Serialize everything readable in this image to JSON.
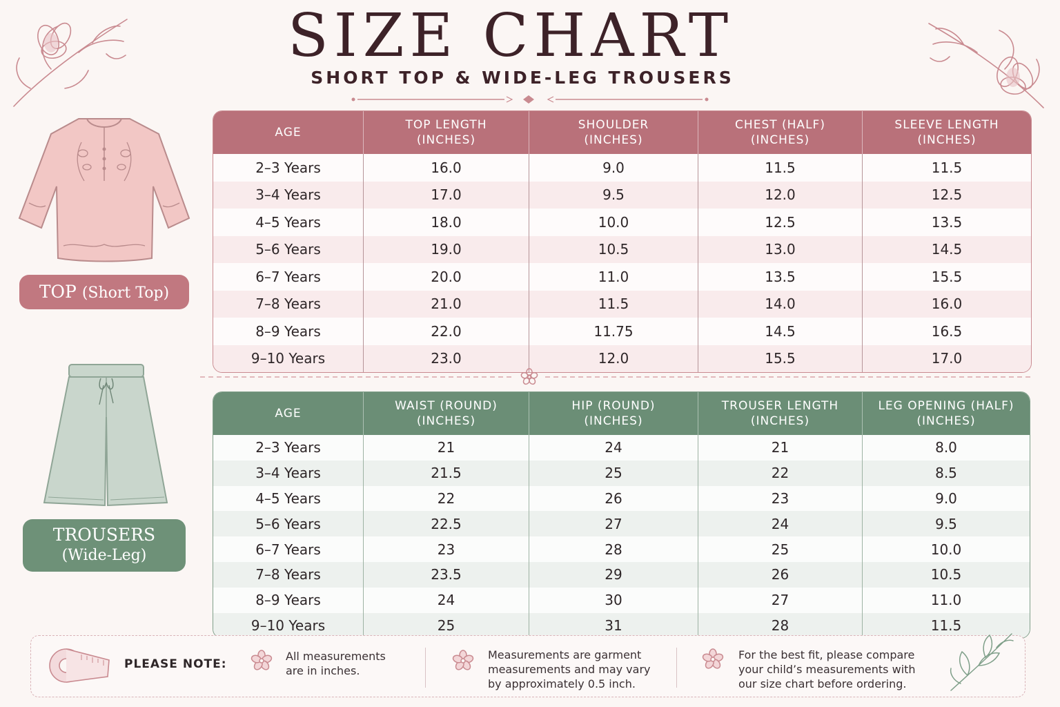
{
  "header": {
    "title": "SIZE CHART",
    "subtitle": "SHORT TOP & WIDE-LEG TROUSERS"
  },
  "top_section": {
    "badge_main": "TOP",
    "badge_sub": "(Short Top)",
    "columns": [
      {
        "line1": "AGE",
        "line2": ""
      },
      {
        "line1": "TOP LENGTH",
        "line2": "(INCHES)"
      },
      {
        "line1": "SHOULDER",
        "line2": "(INCHES)"
      },
      {
        "line1": "CHEST (HALF)",
        "line2": "(INCHES)"
      },
      {
        "line1": "SLEEVE LENGTH",
        "line2": "(INCHES)"
      }
    ],
    "rows": [
      [
        "2–3 Years",
        "16.0",
        "9.0",
        "11.5",
        "11.5"
      ],
      [
        "3–4 Years",
        "17.0",
        "9.5",
        "12.0",
        "12.5"
      ],
      [
        "4–5 Years",
        "18.0",
        "10.0",
        "12.5",
        "13.5"
      ],
      [
        "5–6 Years",
        "19.0",
        "10.5",
        "13.0",
        "14.5"
      ],
      [
        "6–7 Years",
        "20.0",
        "11.0",
        "13.5",
        "15.5"
      ],
      [
        "7–8 Years",
        "21.0",
        "11.5",
        "14.0",
        "16.0"
      ],
      [
        "8–9 Years",
        "22.0",
        "11.75",
        "14.5",
        "16.5"
      ],
      [
        "9–10 Years",
        "23.0",
        "12.0",
        "15.5",
        "17.0"
      ]
    ]
  },
  "trousers_section": {
    "badge_main": "TROUSERS",
    "badge_sub": "(Wide-Leg)",
    "columns": [
      {
        "line1": "AGE",
        "line2": ""
      },
      {
        "line1": "WAIST (ROUND)",
        "line2": "(INCHES)"
      },
      {
        "line1": "HIP (ROUND)",
        "line2": "(INCHES)"
      },
      {
        "line1": "TROUSER LENGTH",
        "line2": "(INCHES)"
      },
      {
        "line1": "LEG OPENING (HALF)",
        "line2": "(INCHES)"
      }
    ],
    "rows": [
      [
        "2–3 Years",
        "21",
        "24",
        "21",
        "8.0"
      ],
      [
        "3–4 Years",
        "21.5",
        "25",
        "22",
        "8.5"
      ],
      [
        "4–5 Years",
        "22",
        "26",
        "23",
        "9.0"
      ],
      [
        "5–6 Years",
        "22.5",
        "27",
        "24",
        "9.5"
      ],
      [
        "6–7 Years",
        "23",
        "28",
        "25",
        "10.0"
      ],
      [
        "7–8 Years",
        "23.5",
        "29",
        "26",
        "10.5"
      ],
      [
        "8–9 Years",
        "24",
        "30",
        "27",
        "11.0"
      ],
      [
        "9–10 Years",
        "25",
        "31",
        "28",
        "11.5"
      ]
    ]
  },
  "note": {
    "label": "PLEASE NOTE:",
    "items": [
      {
        "l1": "All measurements",
        "l2": "are in inches.",
        "l3": ""
      },
      {
        "l1": "Measurements are garment",
        "l2": "measurements and may vary",
        "l3": "by approximately 0.5 inch."
      },
      {
        "l1": "For the best fit, please compare",
        "l2": "your child’s measurements with",
        "l3": "our size chart before ordering."
      }
    ]
  },
  "colors": {
    "top_accent": "#b9717a",
    "trousers_accent": "#6b8e76",
    "background": "#fbf6f4",
    "title": "#3d2228"
  },
  "icons": [
    "floral-sprig-icon",
    "top-garment-illustration",
    "trousers-illustration",
    "flower-icon",
    "tape-measure-icon",
    "leaf-sprig-icon"
  ]
}
